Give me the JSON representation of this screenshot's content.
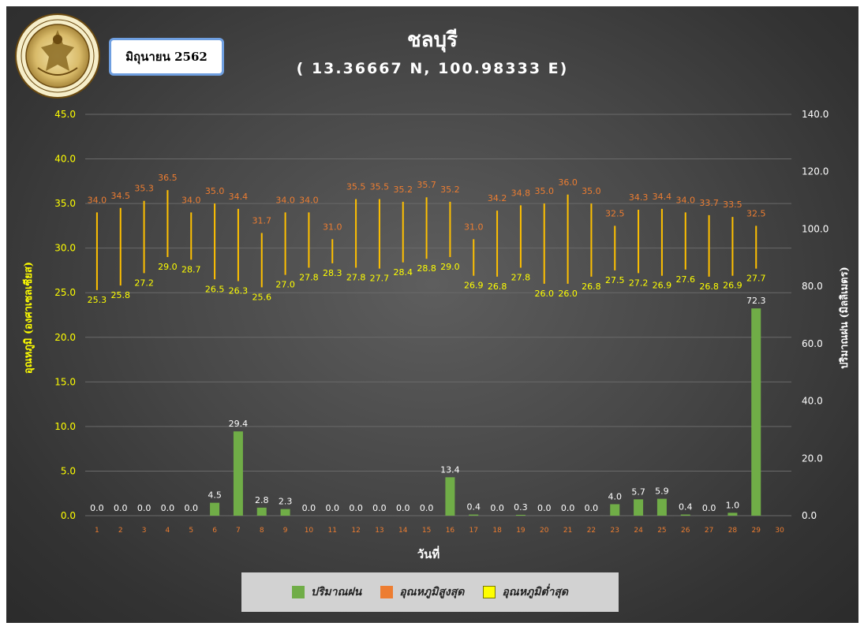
{
  "header": {
    "month_label": "มิถุนายน 2562",
    "title": "ชลบุรี",
    "subtitle": "( 13.36667 N, 100.98333 E)"
  },
  "logo": {
    "icon": "meteorological-department-seal-icon",
    "text": "กรมอุตุนิยมวิทยา METEOROLOGICAL DEPARTMENT"
  },
  "colors": {
    "rain": "#70ad47",
    "tmax_label": "#ed7d31",
    "tmin_label": "#ffff00",
    "bar_line": "#ffc000",
    "axis_text_left": "#ffff00",
    "axis_text_right": "#ffffff"
  },
  "chart_data": {
    "type": "bar",
    "xlabel": "วันที่",
    "ylabel_left": "อุณหภูมิ (องศาเซลเซียส)",
    "ylabel_right": "ปริมาณฝน (มิลลิเมตร)",
    "ylim_left": [
      0,
      45
    ],
    "ylim_right": [
      0,
      140
    ],
    "left_ticks": [
      "0.0",
      "5.0",
      "10.0",
      "15.0",
      "20.0",
      "25.0",
      "30.0",
      "35.0",
      "40.0",
      "45.0"
    ],
    "right_ticks": [
      "0.0",
      "20.0",
      "40.0",
      "60.0",
      "80.0",
      "100.0",
      "120.0",
      "140.0"
    ],
    "categories": [
      "1",
      "2",
      "3",
      "4",
      "5",
      "6",
      "7",
      "8",
      "9",
      "10",
      "11",
      "12",
      "13",
      "14",
      "15",
      "16",
      "17",
      "18",
      "19",
      "20",
      "21",
      "22",
      "23",
      "24",
      "25",
      "26",
      "27",
      "28",
      "29",
      "30"
    ],
    "rain": [
      0.0,
      0.0,
      0.0,
      0.0,
      0.0,
      4.5,
      29.4,
      2.8,
      2.3,
      0.0,
      0.0,
      0.0,
      0.0,
      0.0,
      0.0,
      13.4,
      0.4,
      0.0,
      0.3,
      0.0,
      0.0,
      0.0,
      4.0,
      5.7,
      5.9,
      0.4,
      0.0,
      1.0,
      72.3,
      null
    ],
    "tmax": [
      34.0,
      34.5,
      35.3,
      36.5,
      34.0,
      35.0,
      34.4,
      31.7,
      34.0,
      34.0,
      31.0,
      35.5,
      35.5,
      35.2,
      35.7,
      35.2,
      31.0,
      34.2,
      34.8,
      35.0,
      36.0,
      35.0,
      32.5,
      34.3,
      34.4,
      34.0,
      33.7,
      33.5,
      32.5,
      null
    ],
    "tmin": [
      25.3,
      25.8,
      27.2,
      29.0,
      28.7,
      26.5,
      26.3,
      25.6,
      27.0,
      27.8,
      28.3,
      27.8,
      27.7,
      28.4,
      28.8,
      29.0,
      26.9,
      26.8,
      27.8,
      26.0,
      26.0,
      26.8,
      27.5,
      27.2,
      26.9,
      27.6,
      26.8,
      26.9,
      27.7,
      null
    ],
    "legend": [
      "ปริมาณฝน",
      "อุณหภูมิสูงสุด",
      "อุณหภูมิต่ำสุด"
    ],
    "legend_position": "bottom",
    "grid": true
  }
}
